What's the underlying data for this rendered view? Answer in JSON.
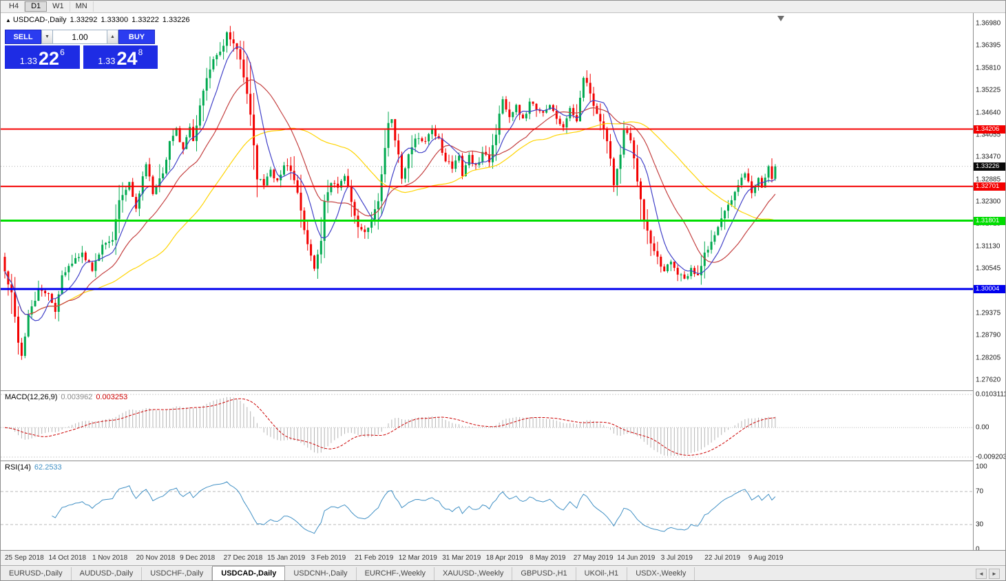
{
  "toolbar": {
    "timeframes": [
      "H4",
      "D1",
      "W1",
      "MN"
    ],
    "active": "D1"
  },
  "chart_header": {
    "marker": "▲",
    "title": "USDCAD-,Daily",
    "open": "1.33292",
    "high": "1.33300",
    "low": "1.33222",
    "close": "1.33226"
  },
  "trade_panel": {
    "sell_label": "SELL",
    "buy_label": "BUY",
    "volume": "1.00",
    "spinner_down": "▼",
    "spinner_up": "▲",
    "sell_price": {
      "prefix": "1.33",
      "big": "22",
      "sup": "6"
    },
    "buy_price": {
      "prefix": "1.33",
      "big": "24",
      "sup": "8"
    },
    "button_color": "#2b3cf0",
    "quote_color": "#1e2ce4"
  },
  "indicators": {
    "macd": {
      "name": "MACD(12,26,9)",
      "main_value": "0.003962",
      "signal_value": "0.003253",
      "axis_max": "0.0103111",
      "axis_zero": "0.00",
      "axis_min": "-0.0092033"
    },
    "rsi": {
      "name": "RSI(14)",
      "value": "62.2533",
      "axis": [
        "100",
        "70",
        "30",
        "0"
      ]
    }
  },
  "tabs": {
    "items": [
      "EURUSD-,Daily",
      "AUDUSD-,Daily",
      "USDCHF-,Daily",
      "USDCAD-,Daily",
      "USDCNH-,Daily",
      "EURCHF-,Weekly",
      "XAUUSD-,Weekly",
      "GBPUSD-,H1",
      "UKOil-,H1",
      "USDX-,Weekly"
    ],
    "active": "USDCAD-,Daily",
    "nav_left": "◄",
    "nav_right": "►"
  },
  "chart_data": {
    "type": "candlestick",
    "symbol": "USDCAD",
    "period": "Daily",
    "last_bid": 1.33226,
    "ohlc": {
      "open": 1.33292,
      "high": 1.333,
      "low": 1.33222,
      "close": 1.33226
    },
    "y_axis": {
      "price_top": 1.37251,
      "price_bottom": 1.27346,
      "ticks": [
        "1.36980",
        "1.36395",
        "1.35810",
        "1.35225",
        "1.34640",
        "1.34055",
        "1.33470",
        "1.32885",
        "1.32300",
        "1.31715",
        "1.31130",
        "1.30545",
        "1.29960",
        "1.29375",
        "1.28790",
        "1.28205",
        "1.27620"
      ]
    },
    "x_labels": [
      "25 Sep 2018",
      "14 Oct 2018",
      "1 Nov 2018",
      "20 Nov 2018",
      "9 Dec 2018",
      "27 Dec 2018",
      "15 Jan 2019",
      "3 Feb 2019",
      "21 Feb 2019",
      "12 Mar 2019",
      "31 Mar 2019",
      "18 Apr 2019",
      "8 May 2019",
      "27 May 2019",
      "14 Jun 2019",
      "3 Jul 2019",
      "22 Jul 2019",
      "9 Aug 2019"
    ],
    "horizontal_lines": [
      {
        "price": 1.34206,
        "label": "1.34206",
        "color": "#f40000",
        "width": 2
      },
      {
        "price": 1.32701,
        "label": "1.32701",
        "color": "#f40000",
        "width": 2
      },
      {
        "price": 1.31801,
        "label": "1.31801",
        "color": "#00dd00",
        "width": 3
      },
      {
        "price": 1.30004,
        "label": "1.30004",
        "color": "#0000ee",
        "width": 3
      }
    ],
    "current_price_label": {
      "price": 1.33226,
      "label": "1.33226",
      "bg": "#0a0a0a"
    },
    "candle_count": 230,
    "close_anchors": [
      [
        0,
        1.304
      ],
      [
        2,
        1.2985
      ],
      [
        4,
        1.286
      ],
      [
        5,
        1.2823
      ],
      [
        7,
        1.293
      ],
      [
        10,
        1.3
      ],
      [
        13,
        1.2985
      ],
      [
        15,
        1.2945
      ],
      [
        17,
        1.303
      ],
      [
        20,
        1.307
      ],
      [
        23,
        1.309
      ],
      [
        26,
        1.305
      ],
      [
        29,
        1.311
      ],
      [
        32,
        1.3135
      ],
      [
        34,
        1.323
      ],
      [
        37,
        1.3285
      ],
      [
        39,
        1.321
      ],
      [
        42,
        1.333
      ],
      [
        44,
        1.3255
      ],
      [
        47,
        1.33
      ],
      [
        49,
        1.339
      ],
      [
        51,
        1.342
      ],
      [
        53,
        1.3365
      ],
      [
        55,
        1.342
      ],
      [
        56,
        1.339
      ],
      [
        58,
        1.348
      ],
      [
        60,
        1.3555
      ],
      [
        62,
        1.36
      ],
      [
        65,
        1.3645
      ],
      [
        66,
        1.3675
      ],
      [
        69,
        1.3635
      ],
      [
        71,
        1.356
      ],
      [
        73,
        1.346
      ],
      [
        75,
        1.3295
      ],
      [
        77,
        1.327
      ],
      [
        79,
        1.331
      ],
      [
        81,
        1.3285
      ],
      [
        83,
        1.333
      ],
      [
        85,
        1.331
      ],
      [
        87,
        1.325
      ],
      [
        89,
        1.3155
      ],
      [
        91,
        1.3085
      ],
      [
        92,
        1.306
      ],
      [
        94,
        1.313
      ],
      [
        95,
        1.323
      ],
      [
        97,
        1.328
      ],
      [
        99,
        1.327
      ],
      [
        101,
        1.33
      ],
      [
        103,
        1.3235
      ],
      [
        105,
        1.3165
      ],
      [
        107,
        1.315
      ],
      [
        109,
        1.318
      ],
      [
        111,
        1.323
      ],
      [
        112,
        1.33
      ],
      [
        114,
        1.343
      ],
      [
        115,
        1.344
      ],
      [
        117,
        1.3355
      ],
      [
        118,
        1.3285
      ],
      [
        120,
        1.335
      ],
      [
        122,
        1.34
      ],
      [
        125,
        1.3385
      ],
      [
        127,
        1.342
      ],
      [
        129,
        1.339
      ],
      [
        131,
        1.334
      ],
      [
        133,
        1.332
      ],
      [
        135,
        1.335
      ],
      [
        136,
        1.33
      ],
      [
        138,
        1.335
      ],
      [
        140,
        1.332
      ],
      [
        142,
        1.336
      ],
      [
        144,
        1.334
      ],
      [
        146,
        1.341
      ],
      [
        148,
        1.3505
      ],
      [
        150,
        1.345
      ],
      [
        152,
        1.348
      ],
      [
        154,
        1.3445
      ],
      [
        156,
        1.349
      ],
      [
        158,
        1.347
      ],
      [
        160,
        1.346
      ],
      [
        162,
        1.348
      ],
      [
        164,
        1.3445
      ],
      [
        166,
        1.343
      ],
      [
        168,
        1.347
      ],
      [
        170,
        1.344
      ],
      [
        172,
        1.3555
      ],
      [
        174,
        1.352
      ],
      [
        175,
        1.348
      ],
      [
        177,
        1.344
      ],
      [
        178,
        1.342
      ],
      [
        180,
        1.335
      ],
      [
        181,
        1.328
      ],
      [
        183,
        1.335
      ],
      [
        184,
        1.342
      ],
      [
        186,
        1.339
      ],
      [
        188,
        1.3285
      ],
      [
        190,
        1.318
      ],
      [
        192,
        1.312
      ],
      [
        194,
        1.308
      ],
      [
        196,
        1.305
      ],
      [
        198,
        1.307
      ],
      [
        200,
        1.304
      ],
      [
        202,
        1.303
      ],
      [
        204,
        1.3052
      ],
      [
        206,
        1.3042
      ],
      [
        208,
        1.309
      ],
      [
        210,
        1.313
      ],
      [
        212,
        1.316
      ],
      [
        214,
        1.32
      ],
      [
        216,
        1.323
      ],
      [
        218,
        1.327
      ],
      [
        220,
        1.331
      ],
      [
        222,
        1.3252
      ],
      [
        224,
        1.329
      ],
      [
        225,
        1.327
      ],
      [
        227,
        1.332
      ],
      [
        228,
        1.3285
      ],
      [
        229,
        1.33226
      ]
    ],
    "colors": {
      "up": "#00a94f",
      "down": "#f20000",
      "ma_fast": "#4040c8",
      "ma_mid": "#c44040",
      "ma_slow": "#ffd400",
      "macd_bars": "#b4b4b4",
      "macd_signal": "#cc0000",
      "rsi_line": "#3f8fc4",
      "levels": "#b8b8b8"
    },
    "moving_averages": [
      {
        "period": 45,
        "color_key": "ma_slow"
      },
      {
        "period": 20,
        "color_key": "ma_mid"
      },
      {
        "period": 8,
        "color_key": "ma_fast"
      }
    ],
    "macd": {
      "fast": 12,
      "slow": 26,
      "signal": 9,
      "scale_max": 0.0103111,
      "scale_min": -0.0092033
    },
    "rsi": {
      "period": 14,
      "levels": [
        70,
        30
      ],
      "last_value": 62.2533
    }
  }
}
